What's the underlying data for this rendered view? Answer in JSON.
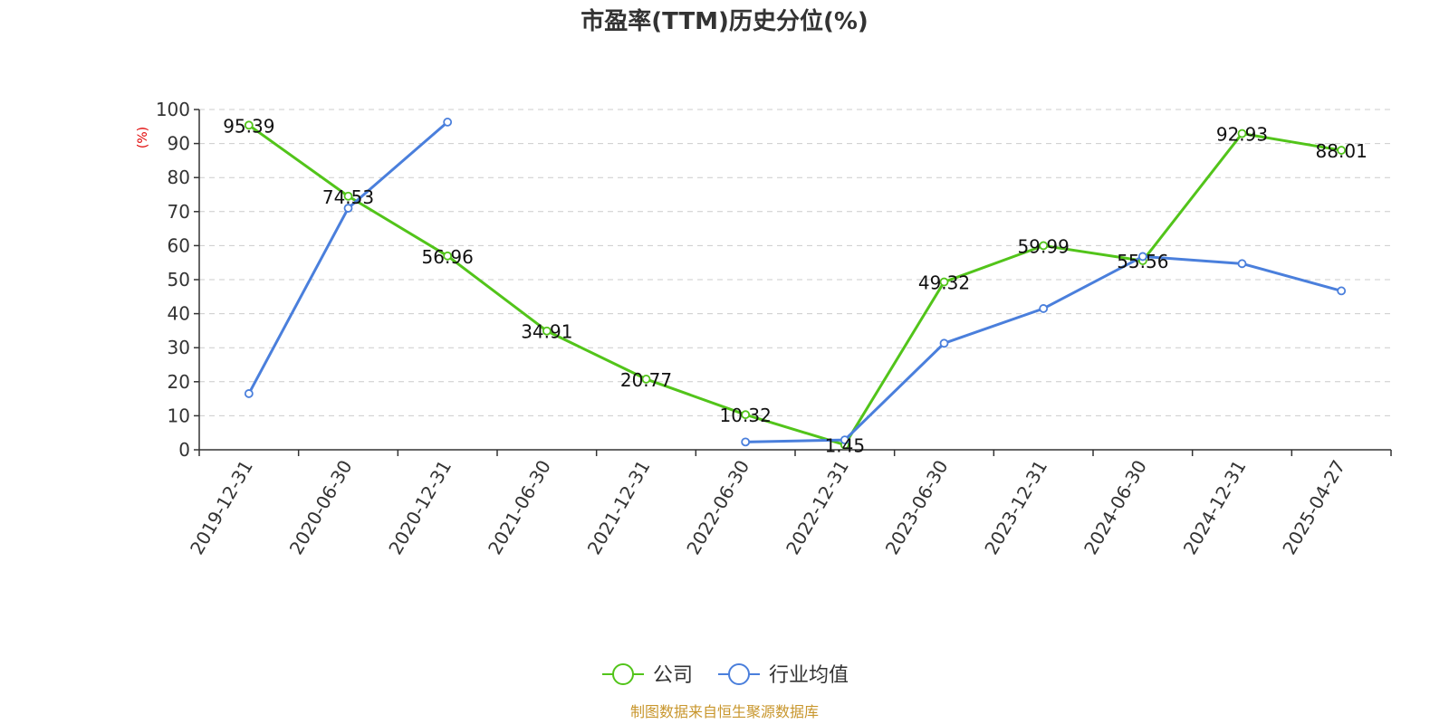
{
  "chart_data": {
    "type": "line",
    "title": "市盈率(TTM)历史分位(%)",
    "ylabel": "(%)",
    "ylim": [
      0,
      100
    ],
    "yticks": [
      0,
      10,
      20,
      30,
      40,
      50,
      60,
      70,
      80,
      90,
      100
    ],
    "grid": true,
    "legend_position": "bottom",
    "categories": [
      "2019-12-31",
      "2020-06-30",
      "2020-12-31",
      "2021-06-30",
      "2021-12-31",
      "2022-06-30",
      "2022-12-31",
      "2023-06-30",
      "2023-12-31",
      "2024-06-30",
      "2024-12-31",
      "2025-04-27"
    ],
    "series": [
      {
        "name": "公司",
        "color": "#52c41a",
        "show_labels": true,
        "values": [
          95.39,
          74.53,
          56.96,
          34.91,
          20.77,
          10.32,
          1.45,
          49.32,
          59.99,
          55.56,
          92.93,
          88.01
        ],
        "labels": [
          "95.39",
          "74.53",
          "56.96",
          "34.91",
          "20.77",
          "10.32",
          "1.45",
          "49.32",
          "59.99",
          "55.56",
          "92.93",
          "88.01"
        ]
      },
      {
        "name": "行业均值",
        "color": "#4a7fdc",
        "show_labels": false,
        "values": [
          16.5,
          71,
          96.3,
          null,
          null,
          2.3,
          2.9,
          31.3,
          41.5,
          56.8,
          54.7,
          46.7
        ]
      }
    ],
    "source": "制图数据来自恒生聚源数据库"
  }
}
